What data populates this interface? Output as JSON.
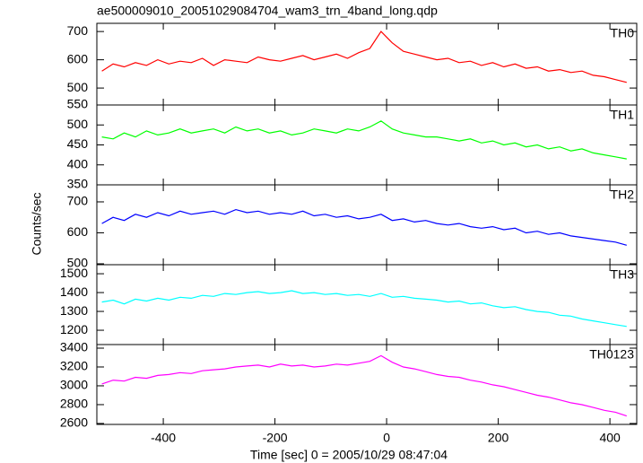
{
  "chart_data": [
    {
      "type": "line",
      "title": "ae500009010_20051029084704_wam3_trn_4band_long.qdp",
      "x": [
        -510,
        -490,
        -470,
        -450,
        -430,
        -410,
        -390,
        -370,
        -350,
        -330,
        -310,
        -290,
        -270,
        -250,
        -230,
        -210,
        -190,
        -170,
        -150,
        -130,
        -110,
        -90,
        -70,
        -50,
        -30,
        -10,
        10,
        30,
        50,
        70,
        90,
        110,
        130,
        150,
        170,
        190,
        210,
        230,
        250,
        270,
        290,
        310,
        330,
        350,
        370,
        390,
        410,
        430
      ],
      "series": [
        {
          "name": "TH0",
          "color": "#ff0000",
          "values": [
            560,
            585,
            575,
            590,
            580,
            600,
            585,
            595,
            590,
            605,
            580,
            600,
            595,
            590,
            610,
            600,
            595,
            605,
            615,
            600,
            610,
            620,
            605,
            625,
            640,
            700,
            660,
            630,
            620,
            610,
            600,
            605,
            590,
            595,
            580,
            590,
            575,
            585,
            570,
            575,
            560,
            565,
            555,
            560,
            545,
            540,
            530,
            520
          ]
        }
      ],
      "xlim": [
        -519,
        448
      ],
      "xticks": [
        -400,
        -200,
        0,
        200,
        400
      ],
      "ylim": [
        440,
        729
      ],
      "yticks": [
        500,
        600,
        700
      ]
    },
    {
      "type": "line",
      "x": [
        -510,
        -490,
        -470,
        -450,
        -430,
        -410,
        -390,
        -370,
        -350,
        -330,
        -310,
        -290,
        -270,
        -250,
        -230,
        -210,
        -190,
        -170,
        -150,
        -130,
        -110,
        -90,
        -70,
        -50,
        -30,
        -10,
        10,
        30,
        50,
        70,
        90,
        110,
        130,
        150,
        170,
        190,
        210,
        230,
        250,
        270,
        290,
        310,
        330,
        350,
        370,
        390,
        410,
        430
      ],
      "series": [
        {
          "name": "TH1",
          "color": "#00ff00",
          "values": [
            470,
            465,
            480,
            470,
            485,
            475,
            480,
            490,
            480,
            485,
            490,
            480,
            495,
            485,
            490,
            480,
            485,
            475,
            480,
            490,
            485,
            480,
            490,
            485,
            495,
            510,
            490,
            480,
            475,
            470,
            470,
            465,
            460,
            465,
            455,
            460,
            450,
            455,
            445,
            450,
            440,
            445,
            435,
            440,
            430,
            425,
            420,
            415
          ]
        }
      ],
      "xlim": [
        -519,
        448
      ],
      "xticks": [
        -400,
        -200,
        0,
        200,
        400
      ],
      "ylim": [
        350,
        550
      ],
      "yticks": [
        350,
        400,
        450,
        500,
        550
      ]
    },
    {
      "type": "line",
      "ylabel": "Counts/sec",
      "x": [
        -510,
        -490,
        -470,
        -450,
        -430,
        -410,
        -390,
        -370,
        -350,
        -330,
        -310,
        -290,
        -270,
        -250,
        -230,
        -210,
        -190,
        -170,
        -150,
        -130,
        -110,
        -90,
        -70,
        -50,
        -30,
        -10,
        10,
        30,
        50,
        70,
        90,
        110,
        130,
        150,
        170,
        190,
        210,
        230,
        250,
        270,
        290,
        310,
        330,
        350,
        370,
        390,
        410,
        430
      ],
      "series": [
        {
          "name": "TH2",
          "color": "#0000ff",
          "values": [
            630,
            650,
            640,
            660,
            650,
            665,
            655,
            670,
            660,
            665,
            670,
            660,
            675,
            665,
            670,
            660,
            665,
            660,
            670,
            655,
            660,
            650,
            655,
            645,
            650,
            660,
            640,
            645,
            635,
            640,
            630,
            625,
            630,
            620,
            615,
            620,
            610,
            615,
            600,
            605,
            595,
            600,
            590,
            585,
            580,
            575,
            570,
            560
          ]
        }
      ],
      "xlim": [
        -519,
        448
      ],
      "xticks": [
        -400,
        -200,
        0,
        200,
        400
      ],
      "ylim": [
        497,
        755
      ],
      "yticks": [
        500,
        600,
        700
      ]
    },
    {
      "type": "line",
      "x": [
        -510,
        -490,
        -470,
        -450,
        -430,
        -410,
        -390,
        -370,
        -350,
        -330,
        -310,
        -290,
        -270,
        -250,
        -230,
        -210,
        -190,
        -170,
        -150,
        -130,
        -110,
        -90,
        -70,
        -50,
        -30,
        -10,
        10,
        30,
        50,
        70,
        90,
        110,
        130,
        150,
        170,
        190,
        210,
        230,
        250,
        270,
        290,
        310,
        330,
        350,
        370,
        390,
        410,
        430
      ],
      "series": [
        {
          "name": "TH3",
          "color": "#00ffff",
          "values": [
            1350,
            1360,
            1340,
            1365,
            1355,
            1370,
            1360,
            1375,
            1370,
            1385,
            1380,
            1395,
            1390,
            1400,
            1405,
            1395,
            1400,
            1410,
            1395,
            1400,
            1390,
            1395,
            1385,
            1390,
            1380,
            1395,
            1375,
            1380,
            1370,
            1365,
            1360,
            1350,
            1355,
            1340,
            1345,
            1330,
            1320,
            1325,
            1310,
            1300,
            1295,
            1280,
            1275,
            1260,
            1250,
            1240,
            1230,
            1220
          ]
        }
      ],
      "xlim": [
        -519,
        448
      ],
      "xticks": [
        -400,
        -200,
        0,
        200,
        400
      ],
      "ylim": [
        1124,
        1548
      ],
      "yticks": [
        1200,
        1300,
        1400,
        1500
      ]
    },
    {
      "type": "line",
      "xlabel": "Time [sec] 0 = 2005/10/29 08:47:04",
      "x": [
        -510,
        -490,
        -470,
        -450,
        -430,
        -410,
        -390,
        -370,
        -350,
        -330,
        -310,
        -290,
        -270,
        -250,
        -230,
        -210,
        -190,
        -170,
        -150,
        -130,
        -110,
        -90,
        -70,
        -50,
        -30,
        -10,
        10,
        30,
        50,
        70,
        90,
        110,
        130,
        150,
        170,
        190,
        210,
        230,
        250,
        270,
        290,
        310,
        330,
        350,
        370,
        390,
        410,
        430
      ],
      "series": [
        {
          "name": "TH0123",
          "color": "#ff00ff",
          "values": [
            3020,
            3060,
            3050,
            3090,
            3080,
            3110,
            3120,
            3140,
            3130,
            3160,
            3170,
            3180,
            3200,
            3210,
            3220,
            3200,
            3230,
            3210,
            3220,
            3200,
            3210,
            3230,
            3220,
            3240,
            3260,
            3320,
            3250,
            3200,
            3180,
            3150,
            3120,
            3100,
            3090,
            3060,
            3040,
            3010,
            2990,
            2960,
            2930,
            2900,
            2880,
            2850,
            2820,
            2800,
            2770,
            2740,
            2720,
            2680
          ]
        }
      ],
      "xlim": [
        -519,
        448
      ],
      "xticks": [
        -400,
        -200,
        0,
        200,
        400
      ],
      "ylim": [
        2590,
        3438
      ],
      "yticks": [
        2600,
        2800,
        3000,
        3200,
        3400
      ]
    }
  ]
}
